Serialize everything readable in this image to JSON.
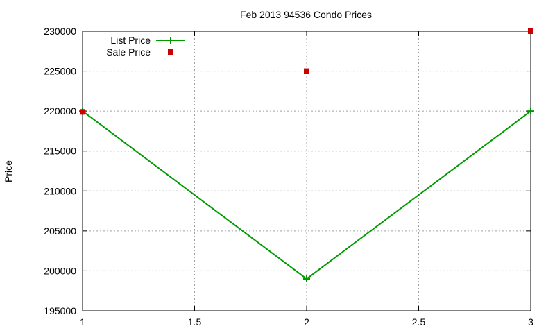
{
  "chart_data": {
    "type": "line",
    "title": "Feb 2013 94536 Condo Prices",
    "xlabel": "",
    "ylabel": "Price",
    "xlim": [
      1,
      3
    ],
    "ylim": [
      195000,
      230000
    ],
    "x_ticks": [
      "1",
      "1.5",
      "2",
      "2.5",
      "3"
    ],
    "y_ticks": [
      "195000",
      "200000",
      "205000",
      "210000",
      "215000",
      "220000",
      "225000",
      "230000"
    ],
    "grid": true,
    "legend_position": "top-left",
    "series": [
      {
        "name": "List Price",
        "style": "line-with-plus-markers",
        "color": "#009900",
        "x": [
          1,
          2,
          3
        ],
        "y": [
          220000,
          199000,
          220000
        ]
      },
      {
        "name": "Sale Price",
        "style": "square-markers",
        "color": "#cc0000",
        "x": [
          1,
          2,
          3
        ],
        "y": [
          219900,
          225000,
          230000
        ]
      }
    ]
  }
}
